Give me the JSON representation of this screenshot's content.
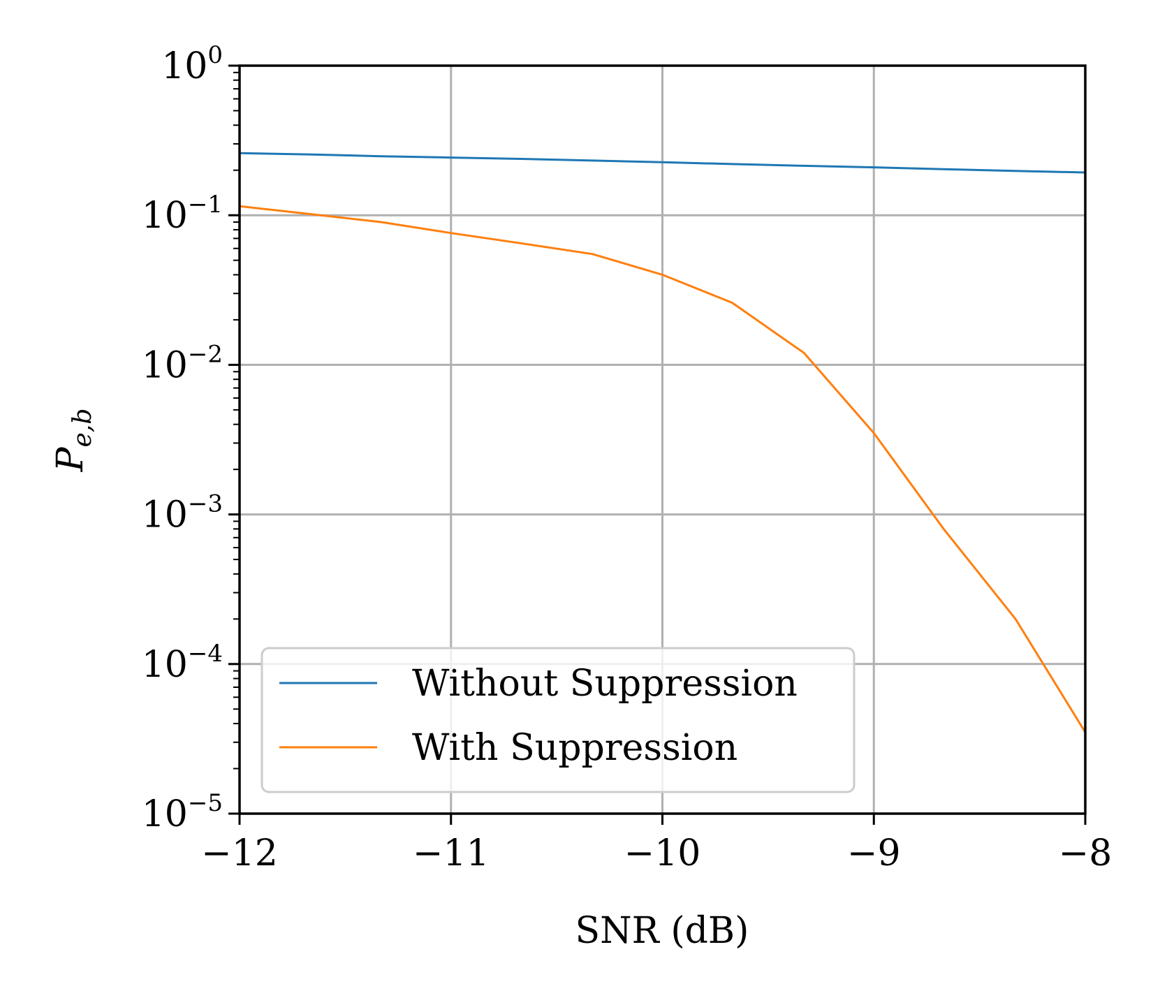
{
  "chart_data": {
    "type": "line",
    "xlabel": "SNR (dB)",
    "ylabel_main": "P",
    "ylabel_sub": "e,b",
    "xlim": [
      -12,
      -8
    ],
    "ylim": [
      1e-05,
      1
    ],
    "yscale": "log",
    "grid": true,
    "legend_position": "lower-left",
    "x_ticks": [
      -12,
      -11,
      -10,
      -9,
      -8
    ],
    "x_tick_labels": [
      "−12",
      "−11",
      "−10",
      "−9",
      "−8"
    ],
    "y_ticks": [
      1,
      0.1,
      0.01,
      0.001,
      0.0001,
      1e-05
    ],
    "y_tick_labels": [
      {
        "base": "10",
        "exp": "0"
      },
      {
        "base": "10",
        "exp": "−1"
      },
      {
        "base": "10",
        "exp": "−2"
      },
      {
        "base": "10",
        "exp": "−3"
      },
      {
        "base": "10",
        "exp": "−4"
      },
      {
        "base": "10",
        "exp": "−5"
      }
    ],
    "series": [
      {
        "name": "Without Suppression",
        "color": "#1f77b4",
        "x": [
          -12,
          -11.67,
          -11.33,
          -11,
          -10.67,
          -10.33,
          -10,
          -9.67,
          -9.33,
          -9,
          -8.67,
          -8.33,
          -8
        ],
        "y": [
          0.26,
          0.255,
          0.248,
          0.243,
          0.238,
          0.232,
          0.226,
          0.22,
          0.214,
          0.209,
          0.203,
          0.198,
          0.193
        ]
      },
      {
        "name": "With Suppression",
        "color": "#ff7f0e",
        "x": [
          -12,
          -11.67,
          -11.33,
          -11,
          -10.67,
          -10.33,
          -10,
          -9.67,
          -9.33,
          -9,
          -8.67,
          -8.33,
          -8
        ],
        "y": [
          0.115,
          0.102,
          0.09,
          0.076,
          0.065,
          0.055,
          0.04,
          0.026,
          0.012,
          0.0035,
          0.0008,
          0.0002,
          3.5e-05
        ]
      }
    ]
  },
  "legend": {
    "items": [
      {
        "label": "Without Suppression",
        "color": "#1f77b4"
      },
      {
        "label": "With Suppression",
        "color": "#ff7f0e"
      }
    ]
  }
}
